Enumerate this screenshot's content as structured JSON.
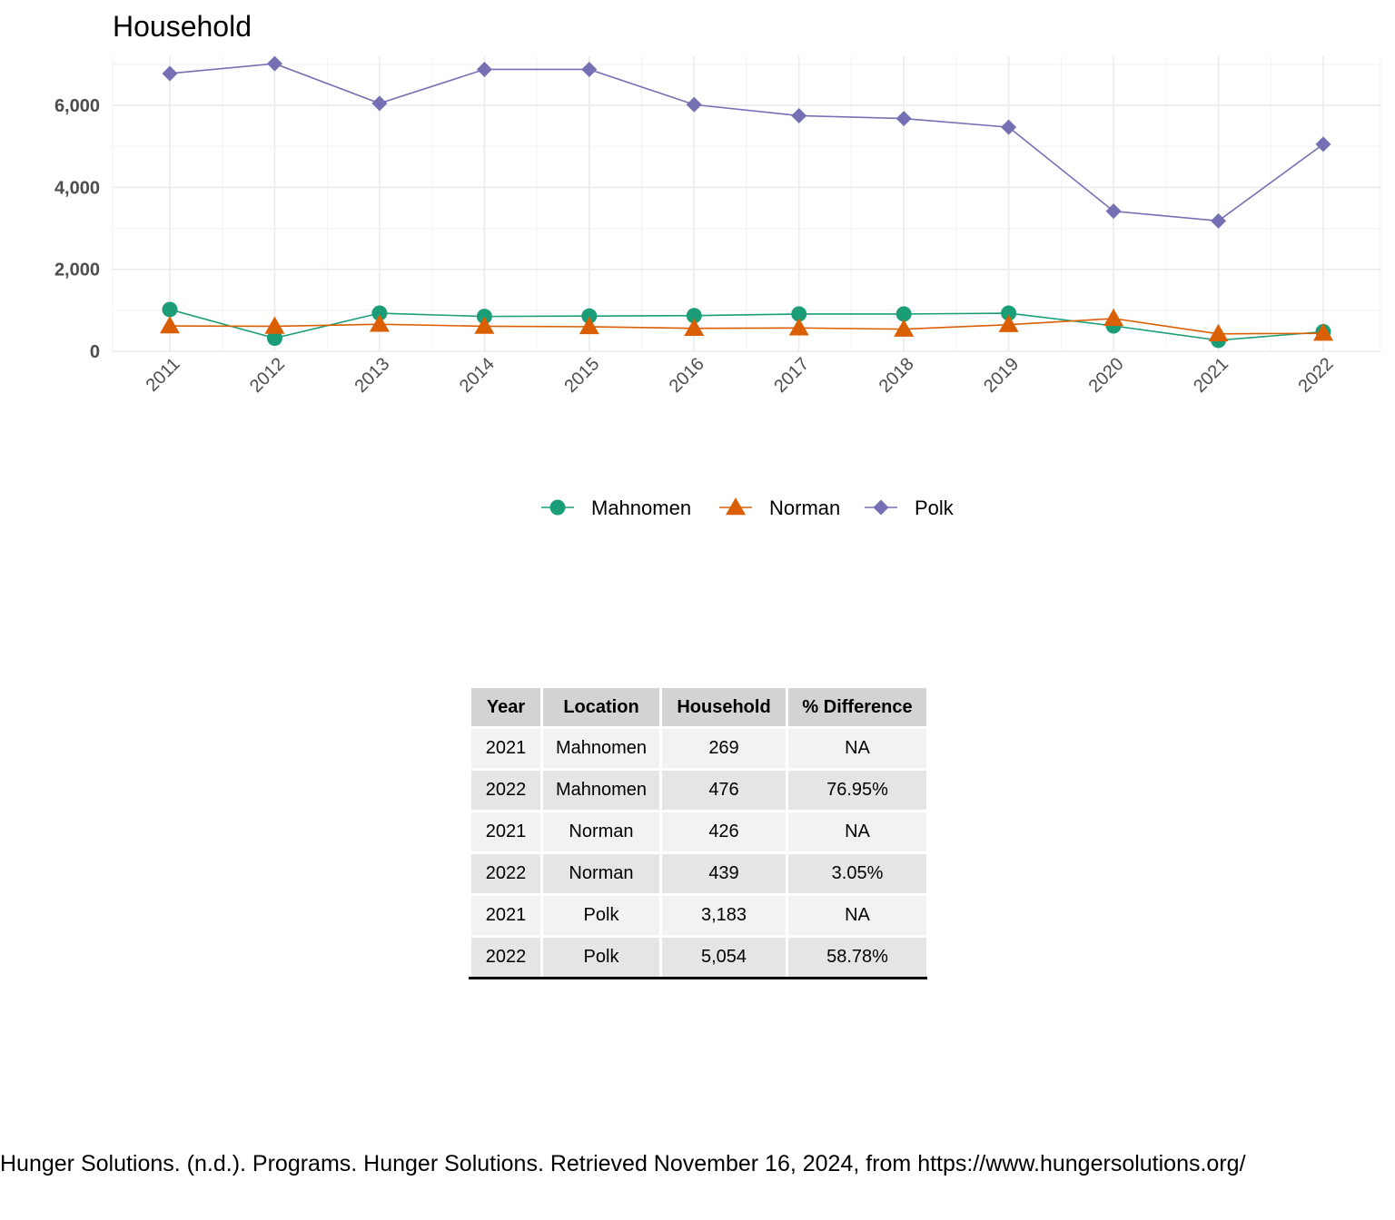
{
  "chart_data": {
    "type": "line",
    "title": "Household",
    "xlabel": "",
    "ylabel": "",
    "x": [
      "2011",
      "2012",
      "2013",
      "2014",
      "2015",
      "2016",
      "2017",
      "2018",
      "2019",
      "2020",
      "2021",
      "2022"
    ],
    "ylim": [
      0,
      7200
    ],
    "yticks": [
      0,
      2000,
      4000,
      6000
    ],
    "ytick_labels": [
      "0",
      "2,000",
      "4,000",
      "6,000"
    ],
    "grid": true,
    "legend_position": "bottom",
    "series": [
      {
        "name": "Mahnomen",
        "marker": "circle",
        "color": "#1b9e77",
        "values": [
          1020,
          320,
          930,
          850,
          860,
          870,
          910,
          910,
          930,
          620,
          269,
          476
        ]
      },
      {
        "name": "Norman",
        "marker": "triangle",
        "color": "#d95f02",
        "values": [
          620,
          610,
          660,
          610,
          600,
          560,
          570,
          540,
          650,
          800,
          426,
          439
        ]
      },
      {
        "name": "Polk",
        "marker": "diamond",
        "color": "#7570b3",
        "values": [
          6780,
          7020,
          6050,
          6880,
          6880,
          6020,
          5750,
          5680,
          5470,
          3420,
          3183,
          5054
        ]
      }
    ]
  },
  "table": {
    "headers": [
      "Year",
      "Location",
      "Household",
      "% Difference"
    ],
    "rows": [
      [
        "2021",
        "Mahnomen",
        "269",
        "NA"
      ],
      [
        "2022",
        "Mahnomen",
        "476",
        "76.95%"
      ],
      [
        "2021",
        "Norman",
        "426",
        "NA"
      ],
      [
        "2022",
        "Norman",
        "439",
        "3.05%"
      ],
      [
        "2021",
        "Polk",
        "3,183",
        "NA"
      ],
      [
        "2022",
        "Polk",
        "5,054",
        "58.78%"
      ]
    ]
  },
  "citation": "Hunger Solutions. (n.d.). Programs. Hunger Solutions. Retrieved November 16, 2024, from https://www.hungersolutions.org/"
}
